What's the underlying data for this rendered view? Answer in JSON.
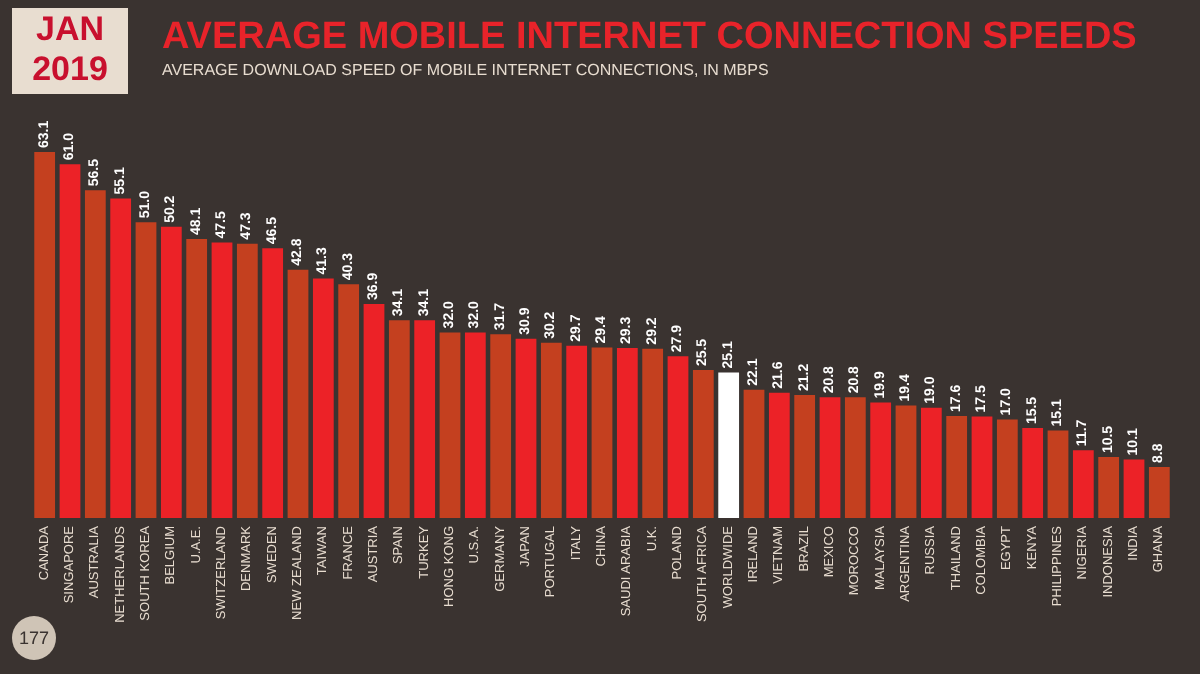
{
  "chart_data": {
    "type": "bar",
    "title": "AVERAGE MOBILE INTERNET CONNECTION SPEEDS",
    "subtitle": "AVERAGE DOWNLOAD SPEED OF MOBILE INTERNET CONNECTIONS, IN MBPS",
    "annotations": [
      "JAN 2019",
      "177"
    ],
    "categories": [
      "CANADA",
      "SINGAPORE",
      "AUSTRALIA",
      "NETHERLANDS",
      "SOUTH KOREA",
      "BELGIUM",
      "U.A.E.",
      "SWITZERLAND",
      "DENMARK",
      "SWEDEN",
      "NEW ZEALAND",
      "TAIWAN",
      "FRANCE",
      "AUSTRIA",
      "SPAIN",
      "TURKEY",
      "HONG KONG",
      "U.S.A.",
      "GERMANY",
      "JAPAN",
      "PORTUGAL",
      "ITALY",
      "CHINA",
      "SAUDI ARABIA",
      "U.K.",
      "POLAND",
      "SOUTH AFRICA",
      "WORLDWIDE",
      "IRELAND",
      "VIETNAM",
      "BRAZIL",
      "MEXICO",
      "MOROCCO",
      "MALAYSIA",
      "ARGENTINA",
      "RUSSIA",
      "THAILAND",
      "COLOMBIA",
      "EGYPT",
      "KENYA",
      "PHILIPPINES",
      "NIGERIA",
      "INDONESIA",
      "INDIA",
      "GHANA"
    ],
    "values": [
      63.1,
      61.0,
      56.5,
      55.1,
      51.0,
      50.2,
      48.1,
      47.5,
      47.3,
      46.5,
      42.8,
      41.3,
      40.3,
      36.9,
      34.1,
      34.1,
      32.0,
      32.0,
      31.7,
      30.9,
      30.2,
      29.7,
      29.4,
      29.3,
      29.2,
      27.9,
      25.5,
      25.1,
      22.1,
      21.6,
      21.2,
      20.8,
      20.8,
      19.9,
      19.4,
      19.0,
      17.6,
      17.5,
      17.0,
      15.5,
      15.1,
      11.7,
      10.5,
      10.1,
      8.8
    ],
    "colors": [
      "#c4401f",
      "#ec2227",
      "#c4401f",
      "#ec2227",
      "#c4401f",
      "#ec2227",
      "#c4401f",
      "#ec2227",
      "#c4401f",
      "#ec2227",
      "#c4401f",
      "#ec2227",
      "#c4401f",
      "#ec2227",
      "#c4401f",
      "#ec2227",
      "#c4401f",
      "#ec2227",
      "#c4401f",
      "#ec2227",
      "#c4401f",
      "#ec2227",
      "#c4401f",
      "#ec2227",
      "#c4401f",
      "#ec2227",
      "#c4401f",
      "#ffffff",
      "#c4401f",
      "#ec2227",
      "#c4401f",
      "#ec2227",
      "#c4401f",
      "#ec2227",
      "#c4401f",
      "#ec2227",
      "#c4401f",
      "#ec2227",
      "#c4401f",
      "#ec2227",
      "#c4401f",
      "#ec2227",
      "#c4401f",
      "#ec2227",
      "#c4401f"
    ],
    "value_labels": [
      "63.1",
      "61.0",
      "56.5",
      "55.1",
      "51.0",
      "50.2",
      "48.1",
      "47.5",
      "47.3",
      "46.5",
      "42.8",
      "41.3",
      "40.3",
      "36.9",
      "34.1",
      "34.1",
      "32.0",
      "32.0",
      "31.7",
      "30.9",
      "30.2",
      "29.7",
      "29.4",
      "29.3",
      "29.2",
      "27.9",
      "25.5",
      "25.1",
      "22.1",
      "21.6",
      "21.2",
      "20.8",
      "20.8",
      "19.9",
      "19.4",
      "19.0",
      "17.6",
      "17.5",
      "17.0",
      "15.5",
      "15.1",
      "11.7",
      "10.5",
      "10.1",
      "8.8"
    ]
  }
}
